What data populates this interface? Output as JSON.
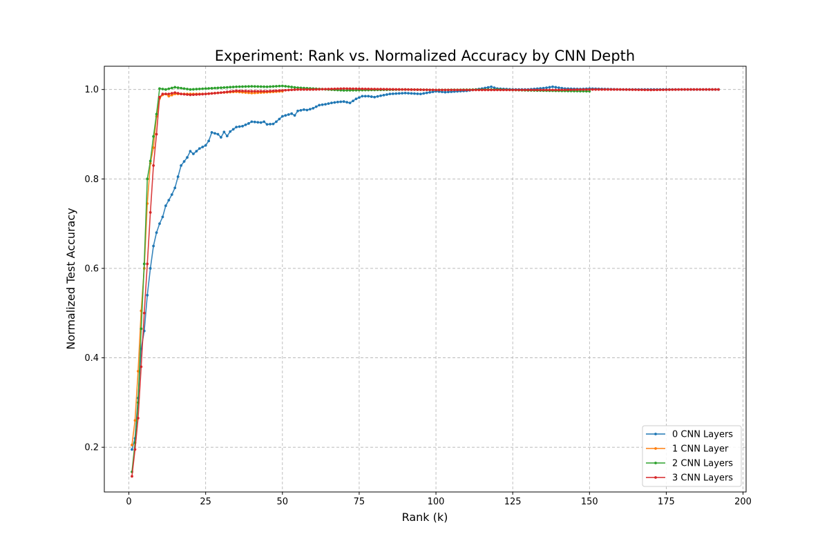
{
  "chart_data": {
    "type": "line",
    "title": "Experiment: Rank vs. Normalized Accuracy by CNN Depth",
    "xlabel": "Rank (k)",
    "ylabel": "Normalized Test Accuracy",
    "xlim": [
      -8,
      201
    ],
    "ylim": [
      0.1,
      1.052
    ],
    "xticks": [
      0,
      25,
      50,
      75,
      100,
      125,
      150,
      175,
      200
    ],
    "yticks": [
      0.2,
      0.4,
      0.6,
      0.8,
      1.0
    ],
    "xtick_labels": [
      "0",
      "25",
      "50",
      "75",
      "100",
      "125",
      "150",
      "175",
      "200"
    ],
    "ytick_labels": [
      "0.2",
      "0.4",
      "0.6",
      "0.8",
      "1.0"
    ],
    "grid": true,
    "legend_position": "lower-right",
    "series": [
      {
        "name": "0 CNN Layers",
        "color": "#1f77b4",
        "x_start": 1,
        "x_end": 192,
        "keypoints": [
          [
            1,
            0.195
          ],
          [
            2,
            0.22
          ],
          [
            3,
            0.31
          ],
          [
            4,
            0.42
          ],
          [
            5,
            0.46
          ],
          [
            6,
            0.54
          ],
          [
            7,
            0.6
          ],
          [
            8,
            0.65
          ],
          [
            9,
            0.68
          ],
          [
            10,
            0.7
          ],
          [
            11,
            0.715
          ],
          [
            12,
            0.74
          ],
          [
            14,
            0.765
          ],
          [
            15,
            0.78
          ],
          [
            16,
            0.805
          ],
          [
            17,
            0.83
          ],
          [
            19,
            0.848
          ],
          [
            20,
            0.862
          ],
          [
            21,
            0.856
          ],
          [
            23,
            0.868
          ],
          [
            25,
            0.875
          ],
          [
            26,
            0.885
          ],
          [
            27,
            0.904
          ],
          [
            29,
            0.9
          ],
          [
            30,
            0.893
          ],
          [
            31,
            0.905
          ],
          [
            32,
            0.896
          ],
          [
            33,
            0.906
          ],
          [
            35,
            0.916
          ],
          [
            37,
            0.918
          ],
          [
            39,
            0.924
          ],
          [
            40,
            0.928
          ],
          [
            43,
            0.926
          ],
          [
            44,
            0.928
          ],
          [
            45,
            0.922
          ],
          [
            47,
            0.923
          ],
          [
            48,
            0.928
          ],
          [
            50,
            0.94
          ],
          [
            52,
            0.944
          ],
          [
            53,
            0.946
          ],
          [
            54,
            0.942
          ],
          [
            55,
            0.952
          ],
          [
            57,
            0.955
          ],
          [
            58,
            0.954
          ],
          [
            60,
            0.958
          ],
          [
            62,
            0.965
          ],
          [
            64,
            0.967
          ],
          [
            66,
            0.97
          ],
          [
            68,
            0.972
          ],
          [
            70,
            0.973
          ],
          [
            72,
            0.97
          ],
          [
            74,
            0.979
          ],
          [
            76,
            0.985
          ],
          [
            78,
            0.985
          ],
          [
            80,
            0.983
          ],
          [
            82,
            0.986
          ],
          [
            85,
            0.99
          ],
          [
            90,
            0.992
          ],
          [
            95,
            0.99
          ],
          [
            100,
            0.996
          ],
          [
            103,
            0.994
          ],
          [
            105,
            0.995
          ],
          [
            110,
            0.997
          ],
          [
            115,
            1.002
          ],
          [
            118,
            1.006
          ],
          [
            120,
            1.002
          ],
          [
            125,
            1.0
          ],
          [
            130,
            1.0
          ],
          [
            135,
            1.003
          ],
          [
            138,
            1.006
          ],
          [
            142,
            1.002
          ],
          [
            147,
            1.001
          ],
          [
            150,
            1.002
          ],
          [
            160,
            1.0
          ],
          [
            192,
            1.0
          ]
        ]
      },
      {
        "name": "1 CNN Layer",
        "color": "#ff7f0e",
        "x_start": 1,
        "x_end": 50,
        "keypoints": [
          [
            1,
            0.205
          ],
          [
            2,
            0.26
          ],
          [
            3,
            0.37
          ],
          [
            4,
            0.505
          ],
          [
            5,
            0.6
          ],
          [
            6,
            0.745
          ],
          [
            7,
            0.835
          ],
          [
            8,
            0.87
          ],
          [
            9,
            0.94
          ],
          [
            10,
            0.98
          ],
          [
            11,
            0.988
          ],
          [
            12,
            0.99
          ],
          [
            13,
            0.985
          ],
          [
            15,
            0.99
          ],
          [
            20,
            0.99
          ],
          [
            25,
            0.99
          ],
          [
            30,
            0.993
          ],
          [
            35,
            0.995
          ],
          [
            40,
            0.992
          ],
          [
            45,
            0.994
          ],
          [
            50,
            0.996
          ]
        ]
      },
      {
        "name": "2 CNN Layers",
        "color": "#2ca02c",
        "x_start": 1,
        "x_end": 150,
        "keypoints": [
          [
            1,
            0.145
          ],
          [
            2,
            0.21
          ],
          [
            3,
            0.3
          ],
          [
            4,
            0.465
          ],
          [
            5,
            0.61
          ],
          [
            6,
            0.8
          ],
          [
            7,
            0.84
          ],
          [
            8,
            0.895
          ],
          [
            9,
            0.945
          ],
          [
            10,
            1.002
          ],
          [
            12,
            1.0
          ],
          [
            15,
            1.005
          ],
          [
            20,
            1.0
          ],
          [
            25,
            1.002
          ],
          [
            30,
            1.004
          ],
          [
            35,
            1.006
          ],
          [
            40,
            1.007
          ],
          [
            45,
            1.006
          ],
          [
            50,
            1.008
          ],
          [
            55,
            1.004
          ],
          [
            60,
            1.002
          ],
          [
            65,
            1.0
          ],
          [
            70,
            0.998
          ],
          [
            80,
            0.999
          ],
          [
            90,
            1.0
          ],
          [
            100,
            0.999
          ],
          [
            120,
            1.0
          ],
          [
            130,
            0.998
          ],
          [
            140,
            0.997
          ],
          [
            150,
            0.996
          ]
        ]
      },
      {
        "name": "3 CNN Layers",
        "color": "#d62728",
        "x_start": 1,
        "x_end": 192,
        "keypoints": [
          [
            1,
            0.135
          ],
          [
            2,
            0.195
          ],
          [
            3,
            0.265
          ],
          [
            4,
            0.38
          ],
          [
            5,
            0.5
          ],
          [
            6,
            0.61
          ],
          [
            7,
            0.725
          ],
          [
            8,
            0.83
          ],
          [
            9,
            0.9
          ],
          [
            10,
            0.983
          ],
          [
            11,
            0.99
          ],
          [
            13,
            0.99
          ],
          [
            15,
            0.993
          ],
          [
            17,
            0.99
          ],
          [
            20,
            0.988
          ],
          [
            25,
            0.99
          ],
          [
            30,
            0.993
          ],
          [
            35,
            0.997
          ],
          [
            40,
            0.996
          ],
          [
            45,
            0.996
          ],
          [
            50,
            0.998
          ],
          [
            55,
            1.0
          ],
          [
            60,
            1.0
          ],
          [
            70,
            1.002
          ],
          [
            80,
            1.001
          ],
          [
            90,
            1.0
          ],
          [
            100,
            0.999
          ],
          [
            110,
            0.999
          ],
          [
            120,
            0.999
          ],
          [
            130,
            0.999
          ],
          [
            140,
            0.999
          ],
          [
            150,
            1.0
          ],
          [
            160,
            1.0
          ],
          [
            170,
            0.999
          ],
          [
            180,
            1.0
          ],
          [
            192,
            1.0
          ]
        ]
      }
    ]
  }
}
